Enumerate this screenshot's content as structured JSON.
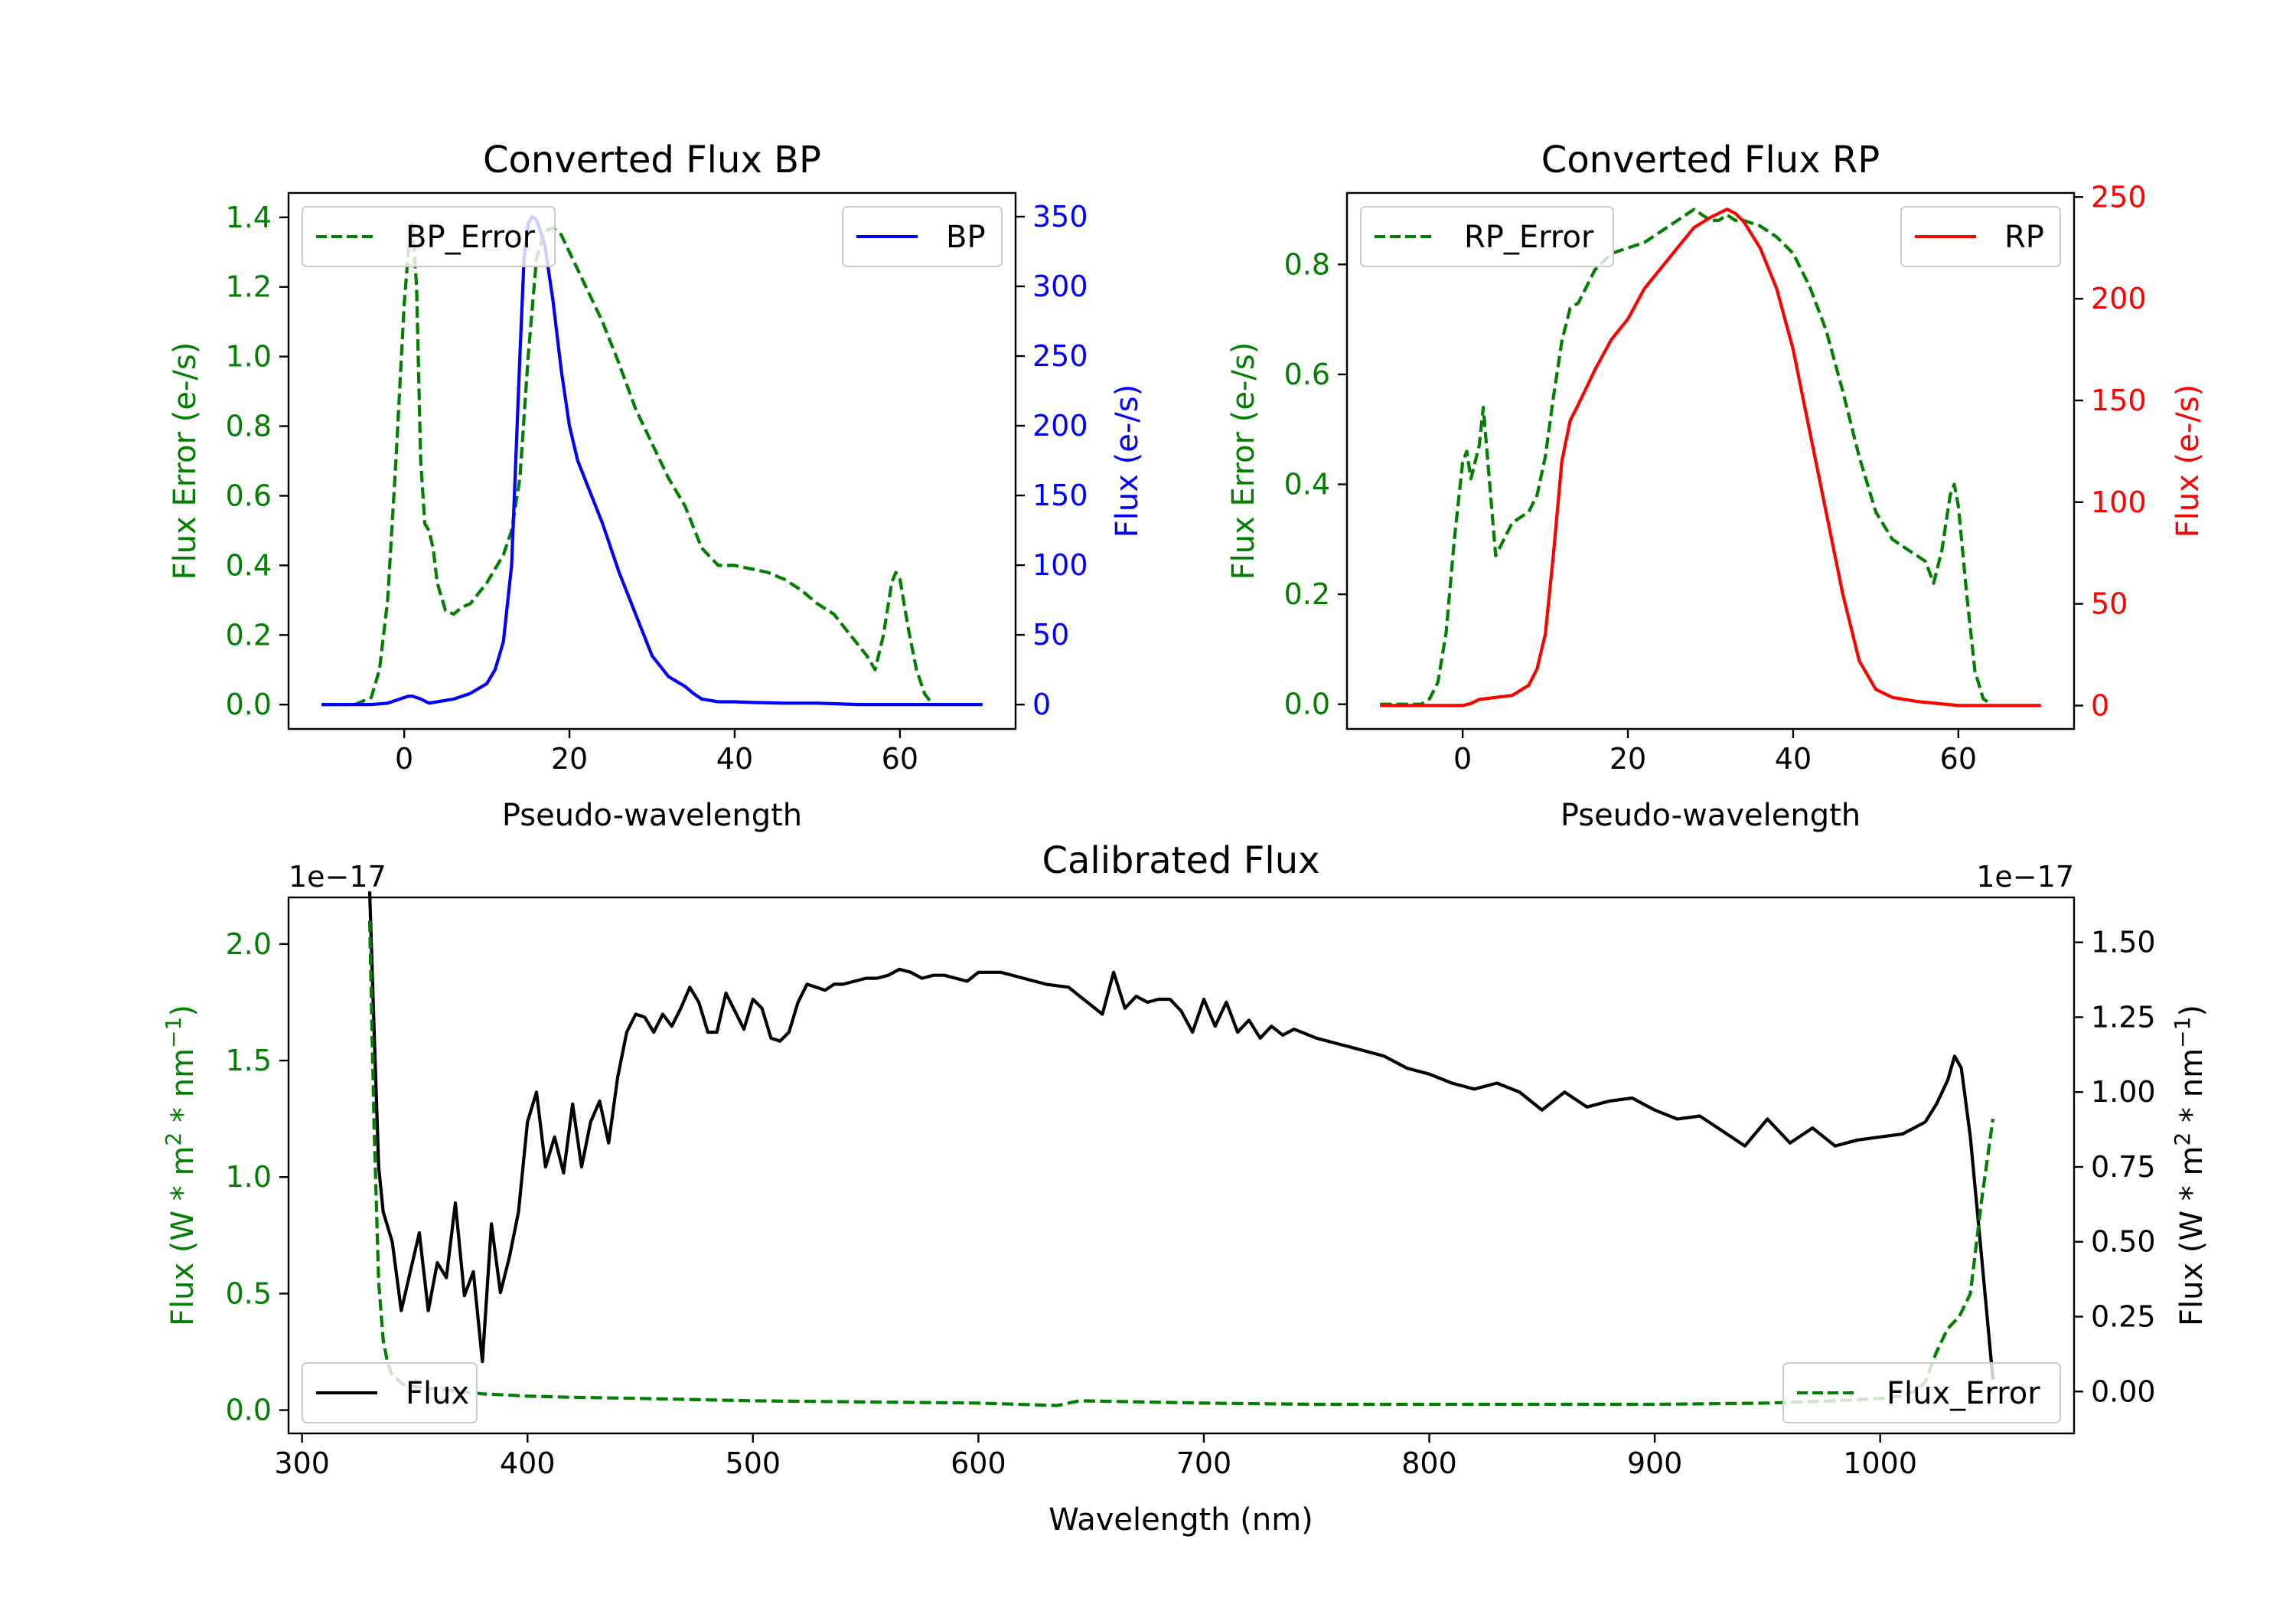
{
  "colors": {
    "green": "#007f00",
    "blue": "#0000ff",
    "red": "#ff0000",
    "black": "#000000"
  },
  "chart_data": [
    {
      "type": "line",
      "title": "Converted Flux BP",
      "xlabel": "Pseudo-wavelength",
      "xlim": [
        -14,
        74
      ],
      "xticks": [
        0,
        20,
        40,
        60
      ],
      "left_axis": {
        "label": "Flux Error (e-/s)",
        "color": "#007f00",
        "ylim": [
          -0.07,
          1.47
        ],
        "ticks": [
          0.0,
          0.2,
          0.4,
          0.6,
          0.8,
          1.0,
          1.2,
          1.4
        ]
      },
      "right_axis": {
        "label": "Flux (e-/s)",
        "color": "#0000ff",
        "ylim": [
          -17.5,
          367
        ],
        "ticks": [
          0,
          50,
          100,
          150,
          200,
          250,
          300,
          350
        ]
      },
      "series": [
        {
          "name": "BP_Error",
          "axis": "left",
          "style": "dashed",
          "color": "#007f00",
          "x": [
            -10,
            -6,
            -4,
            -3,
            -2,
            -1,
            0,
            0.5,
            1,
            1.5,
            2,
            2.5,
            3,
            3.5,
            4,
            5,
            6,
            7,
            8,
            10,
            12,
            13,
            14,
            15,
            16,
            17,
            18,
            19,
            20,
            22,
            24,
            26,
            28,
            30,
            32,
            34,
            36,
            38,
            40,
            42,
            44,
            46,
            48,
            50,
            52,
            54,
            56,
            57,
            58,
            59,
            59.5,
            60,
            61,
            62,
            63,
            64
          ],
          "y": [
            0.0,
            0.0,
            0.02,
            0.1,
            0.3,
            0.7,
            1.15,
            1.3,
            1.38,
            1.2,
            0.7,
            0.52,
            0.5,
            0.45,
            0.35,
            0.27,
            0.26,
            0.28,
            0.29,
            0.35,
            0.43,
            0.5,
            0.65,
            1.0,
            1.28,
            1.36,
            1.37,
            1.35,
            1.3,
            1.2,
            1.1,
            0.98,
            0.85,
            0.75,
            0.65,
            0.57,
            0.45,
            0.4,
            0.4,
            0.39,
            0.38,
            0.36,
            0.33,
            0.29,
            0.26,
            0.2,
            0.14,
            0.1,
            0.2,
            0.35,
            0.38,
            0.36,
            0.22,
            0.1,
            0.03,
            0.0
          ]
        },
        {
          "name": "BP",
          "axis": "right",
          "style": "solid",
          "color": "#0000ff",
          "x": [
            -10,
            -4,
            -2,
            0,
            0.5,
            1,
            2,
            3,
            4,
            6,
            8,
            10,
            11,
            12,
            13,
            14,
            14.5,
            15,
            15.5,
            16,
            17,
            18,
            19,
            20,
            21,
            22,
            24,
            26,
            28,
            30,
            32,
            34,
            35,
            36,
            37,
            38,
            40,
            42,
            46,
            50,
            55,
            60,
            64,
            70
          ],
          "y": [
            0,
            0,
            1,
            5,
            6,
            6,
            4,
            1,
            2,
            4,
            8,
            15,
            25,
            45,
            100,
            250,
            320,
            345,
            350,
            348,
            330,
            290,
            240,
            200,
            175,
            160,
            130,
            95,
            65,
            35,
            20,
            13,
            8,
            4,
            3,
            2,
            2,
            1.5,
            1,
            1,
            0,
            0,
            0,
            0
          ]
        }
      ],
      "legends": [
        {
          "label": "BP_Error",
          "position": "upper-left"
        },
        {
          "label": "BP",
          "position": "upper-right"
        }
      ]
    },
    {
      "type": "line",
      "title": "Converted Flux RP",
      "xlabel": "Pseudo-wavelength",
      "xlim": [
        -14,
        74
      ],
      "xticks": [
        0,
        20,
        40,
        60
      ],
      "left_axis": {
        "label": "Flux Error (e-/s)",
        "color": "#007f00",
        "ylim": [
          -0.045,
          0.93
        ],
        "ticks": [
          0.0,
          0.2,
          0.4,
          0.6,
          0.8
        ]
      },
      "right_axis": {
        "label": "Flux (e-/s)",
        "color": "#ff0000",
        "ylim": [
          -11.5,
          252
        ],
        "ticks": [
          0,
          50,
          100,
          150,
          200,
          250
        ]
      },
      "series": [
        {
          "name": "RP_Error",
          "axis": "right-hidden",
          "style": "dashed",
          "color": "#007f00",
          "x": [
            -10,
            -6,
            -5,
            -4,
            -3,
            -2,
            -1,
            0,
            0.5,
            1,
            2,
            2.5,
            3,
            4,
            5,
            6,
            8,
            9,
            10,
            11,
            12,
            13,
            14,
            15,
            16,
            18,
            20,
            22,
            24,
            26,
            28,
            29,
            30,
            31,
            32,
            33,
            34,
            36,
            38,
            40,
            42,
            44,
            46,
            48,
            50,
            52,
            54,
            56,
            57,
            58,
            59,
            59.5,
            60,
            61,
            62,
            63,
            64
          ],
          "y": [
            0.0,
            0.0,
            0.0,
            0.01,
            0.04,
            0.13,
            0.3,
            0.44,
            0.46,
            0.41,
            0.47,
            0.54,
            0.45,
            0.27,
            0.3,
            0.33,
            0.35,
            0.38,
            0.45,
            0.56,
            0.66,
            0.72,
            0.73,
            0.76,
            0.79,
            0.82,
            0.83,
            0.84,
            0.86,
            0.88,
            0.9,
            0.89,
            0.88,
            0.88,
            0.89,
            0.88,
            0.88,
            0.87,
            0.85,
            0.82,
            0.76,
            0.68,
            0.57,
            0.45,
            0.35,
            0.3,
            0.28,
            0.26,
            0.22,
            0.28,
            0.38,
            0.4,
            0.36,
            0.2,
            0.06,
            0.01,
            0.0
          ]
        },
        {
          "name": "RP",
          "axis": "right",
          "style": "solid",
          "color": "#ff0000",
          "x": [
            -10,
            -2,
            0,
            1,
            2,
            4,
            6,
            8,
            9,
            10,
            11,
            12,
            13,
            14,
            16,
            18,
            20,
            22,
            24,
            26,
            28,
            30,
            31,
            32,
            33,
            34,
            36,
            38,
            40,
            42,
            44,
            46,
            48,
            50,
            52,
            55,
            60,
            65,
            70
          ],
          "y": [
            0,
            0,
            0,
            1,
            3,
            4,
            5,
            10,
            18,
            35,
            75,
            120,
            140,
            148,
            165,
            180,
            190,
            205,
            215,
            225,
            235,
            240,
            242,
            244,
            242,
            238,
            225,
            205,
            175,
            135,
            95,
            55,
            22,
            8,
            4,
            2,
            0,
            0,
            0
          ]
        }
      ],
      "legends": [
        {
          "label": "RP_Error",
          "position": "upper-left"
        },
        {
          "label": "RP",
          "position": "upper-right"
        }
      ]
    },
    {
      "type": "line",
      "title": "Calibrated Flux",
      "xlabel": "Wavelength (nm)",
      "xlim": [
        294,
        1086
      ],
      "xticks": [
        300,
        400,
        500,
        600,
        700,
        800,
        900,
        1000
      ],
      "left_axis": {
        "label_parts": [
          "Flux (W * m",
          "2",
          " * nm",
          "−1",
          ")"
        ],
        "color": "#007f00",
        "ylim": [
          -0.1,
          2.2
        ],
        "ticks": [
          0.0,
          0.5,
          1.0,
          1.5,
          2.0
        ],
        "tick_labels": [
          "0.0",
          "0.5",
          "1.0",
          "1.5",
          "2.0"
        ],
        "offset": "1e−17"
      },
      "right_axis": {
        "label_parts": [
          "Flux (W * m",
          "2",
          " * nm",
          "−1",
          ")"
        ],
        "color": "#000000",
        "ylim": [
          -0.14,
          1.65
        ],
        "ticks": [
          0.0,
          0.25,
          0.5,
          0.75,
          1.0,
          1.25,
          1.5
        ],
        "tick_labels": [
          "0.00",
          "0.25",
          "0.50",
          "0.75",
          "1.00",
          "1.25",
          "1.50"
        ],
        "offset": "1e−17"
      },
      "series": [
        {
          "name": "Flux",
          "axis": "right",
          "style": "solid",
          "color": "#000000",
          "x": [
            330,
            332,
            334,
            336,
            338,
            340,
            344,
            348,
            352,
            356,
            360,
            364,
            368,
            372,
            376,
            380,
            384,
            388,
            392,
            396,
            400,
            404,
            408,
            412,
            416,
            420,
            424,
            428,
            432,
            436,
            440,
            444,
            448,
            452,
            456,
            460,
            464,
            468,
            472,
            476,
            480,
            484,
            488,
            492,
            496,
            500,
            504,
            508,
            512,
            516,
            520,
            524,
            528,
            532,
            536,
            540,
            545,
            550,
            555,
            560,
            565,
            570,
            575,
            580,
            585,
            590,
            595,
            600,
            610,
            620,
            630,
            640,
            645,
            650,
            655,
            660,
            665,
            670,
            675,
            680,
            685,
            690,
            695,
            700,
            705,
            710,
            715,
            720,
            725,
            730,
            735,
            740,
            750,
            760,
            770,
            780,
            790,
            800,
            810,
            820,
            830,
            840,
            850,
            860,
            870,
            880,
            890,
            900,
            910,
            920,
            930,
            940,
            950,
            960,
            970,
            980,
            990,
            1000,
            1010,
            1020,
            1025,
            1030,
            1033,
            1036,
            1040,
            1045,
            1050
          ],
          "y": [
            1.67,
            1.2,
            0.75,
            0.6,
            0.55,
            0.5,
            0.27,
            0.4,
            0.53,
            0.27,
            0.43,
            0.38,
            0.63,
            0.32,
            0.4,
            0.1,
            0.56,
            0.33,
            0.45,
            0.6,
            0.9,
            1.0,
            0.75,
            0.85,
            0.73,
            0.96,
            0.75,
            0.9,
            0.97,
            0.83,
            1.05,
            1.2,
            1.26,
            1.25,
            1.2,
            1.26,
            1.22,
            1.28,
            1.35,
            1.3,
            1.2,
            1.2,
            1.33,
            1.27,
            1.21,
            1.31,
            1.28,
            1.18,
            1.17,
            1.2,
            1.3,
            1.36,
            1.35,
            1.34,
            1.36,
            1.36,
            1.37,
            1.38,
            1.38,
            1.39,
            1.41,
            1.4,
            1.38,
            1.39,
            1.39,
            1.38,
            1.37,
            1.4,
            1.4,
            1.38,
            1.36,
            1.35,
            1.32,
            1.29,
            1.26,
            1.4,
            1.28,
            1.32,
            1.3,
            1.31,
            1.31,
            1.27,
            1.2,
            1.31,
            1.22,
            1.3,
            1.2,
            1.24,
            1.18,
            1.22,
            1.19,
            1.21,
            1.18,
            1.16,
            1.14,
            1.12,
            1.08,
            1.06,
            1.03,
            1.01,
            1.03,
            1.0,
            0.94,
            1.0,
            0.95,
            0.97,
            0.98,
            0.94,
            0.91,
            0.92,
            0.87,
            0.82,
            0.91,
            0.83,
            0.88,
            0.82,
            0.84,
            0.85,
            0.86,
            0.9,
            0.96,
            1.04,
            1.12,
            1.08,
            0.85,
            0.45,
            0.04
          ]
        },
        {
          "name": "Flux_Error",
          "axis": "left",
          "style": "dashed",
          "color": "#007f00",
          "x": [
            330,
            332,
            334,
            336,
            338,
            340,
            345,
            350,
            360,
            370,
            380,
            390,
            400,
            420,
            450,
            500,
            550,
            600,
            635,
            645,
            700,
            750,
            800,
            850,
            900,
            950,
            980,
            1000,
            1010,
            1015,
            1020,
            1025,
            1030,
            1035,
            1040,
            1045,
            1050
          ],
          "y": [
            2.1,
            1.2,
            0.55,
            0.3,
            0.2,
            0.15,
            0.11,
            0.1,
            0.09,
            0.08,
            0.07,
            0.065,
            0.06,
            0.055,
            0.05,
            0.04,
            0.035,
            0.03,
            0.02,
            0.04,
            0.03,
            0.025,
            0.025,
            0.025,
            0.025,
            0.03,
            0.04,
            0.05,
            0.06,
            0.08,
            0.12,
            0.25,
            0.35,
            0.4,
            0.5,
            0.9,
            1.25
          ]
        }
      ],
      "legends": [
        {
          "label": "Flux",
          "position": "lower-left"
        },
        {
          "label": "Flux_Error",
          "position": "lower-right"
        }
      ]
    }
  ]
}
